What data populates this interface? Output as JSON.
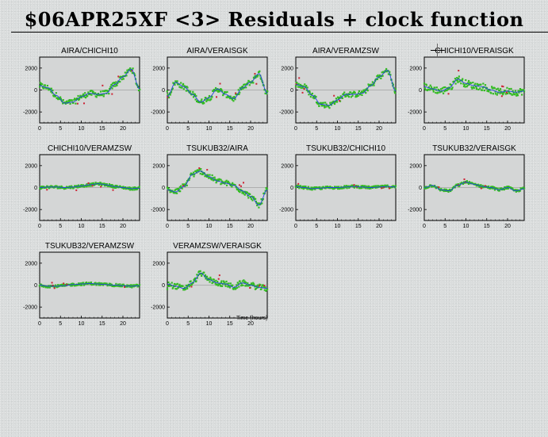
{
  "title": "$06APR25XF <3> Residuals + clock function",
  "colors": {
    "data": "#33bb22",
    "flagged": "#cc2233",
    "clock": "#2244dd",
    "plot_bg": "#d4d6d6"
  },
  "chart_data": [
    {
      "type": "scatter",
      "title": "AIRA/CHICHI10",
      "xlim": [
        0,
        24
      ],
      "ylim": [
        -3000,
        3000
      ],
      "xticks": [
        0,
        5,
        10,
        15,
        20
      ],
      "yticks": [
        -2000,
        0,
        2000
      ],
      "clock_x": [
        0,
        2,
        4,
        6,
        8,
        10,
        12,
        14,
        16,
        18,
        20,
        22,
        24
      ],
      "clock_y": [
        400,
        200,
        -500,
        -1200,
        -1100,
        -600,
        -300,
        -400,
        -300,
        500,
        1200,
        1900,
        100
      ]
    },
    {
      "type": "scatter",
      "title": "AIRA/VERAISGK",
      "xlim": [
        0,
        24
      ],
      "ylim": [
        -3000,
        3000
      ],
      "xticks": [
        0,
        5,
        10,
        15,
        20
      ],
      "yticks": [
        -2000,
        0,
        2000
      ],
      "clock_x": [
        0,
        2,
        4,
        6,
        8,
        10,
        12,
        14,
        16,
        18,
        20,
        22,
        24
      ],
      "clock_y": [
        -600,
        700,
        300,
        -400,
        -1100,
        -700,
        100,
        -400,
        -800,
        200,
        700,
        1500,
        -300
      ]
    },
    {
      "type": "scatter",
      "title": "AIRA/VERAMZSW",
      "xlim": [
        0,
        24
      ],
      "ylim": [
        -3000,
        3000
      ],
      "xticks": [
        0,
        5,
        10,
        15,
        20
      ],
      "yticks": [
        -2000,
        0,
        2000
      ],
      "clock_x": [
        0,
        2,
        4,
        6,
        8,
        10,
        12,
        14,
        16,
        18,
        20,
        22,
        24
      ],
      "clock_y": [
        500,
        300,
        -500,
        -1300,
        -1400,
        -900,
        -400,
        -400,
        -300,
        400,
        1200,
        1800,
        -100
      ]
    },
    {
      "type": "scatter",
      "title": "CHICHI10/VERAISGK",
      "xlim": [
        0,
        24
      ],
      "ylim": [
        -3000,
        3000
      ],
      "xticks": [
        0,
        5,
        10,
        15,
        20
      ],
      "yticks": [
        -2000,
        0,
        2000
      ],
      "clock_x": [
        0,
        2,
        4,
        6,
        8,
        10,
        12,
        14,
        16,
        18,
        20,
        22,
        24
      ],
      "clock_y": [
        300,
        100,
        -100,
        200,
        1000,
        600,
        400,
        300,
        0,
        -200,
        -100,
        -200,
        -100
      ]
    },
    {
      "type": "scatter",
      "title": "CHICHI10/VERAMZSW",
      "xlim": [
        0,
        24
      ],
      "ylim": [
        -3000,
        3000
      ],
      "xticks": [
        0,
        5,
        10,
        15,
        20
      ],
      "yticks": [
        -2000,
        0,
        2000
      ],
      "clock_x": [
        0,
        2,
        4,
        6,
        8,
        10,
        12,
        14,
        16,
        18,
        20,
        22,
        24
      ],
      "clock_y": [
        0,
        50,
        50,
        0,
        50,
        150,
        250,
        350,
        250,
        100,
        0,
        -100,
        -50
      ]
    },
    {
      "type": "scatter",
      "title": "TSUKUB32/AIRA",
      "xlim": [
        0,
        24
      ],
      "ylim": [
        -3000,
        3000
      ],
      "xticks": [
        0,
        5,
        10,
        15,
        20
      ],
      "yticks": [
        -2000,
        0,
        2000
      ],
      "clock_x": [
        0,
        2,
        4,
        6,
        8,
        10,
        12,
        14,
        16,
        18,
        20,
        22,
        24
      ],
      "clock_y": [
        -200,
        -400,
        100,
        1200,
        1500,
        1000,
        600,
        400,
        200,
        -300,
        -800,
        -1600,
        -200
      ]
    },
    {
      "type": "scatter",
      "title": "TSUKUB32/CHICHI10",
      "xlim": [
        0,
        24
      ],
      "ylim": [
        -3000,
        3000
      ],
      "xticks": [
        0,
        5,
        10,
        15,
        20
      ],
      "yticks": [
        -2000,
        0,
        2000
      ],
      "clock_x": [
        0,
        2,
        4,
        6,
        8,
        10,
        12,
        14,
        16,
        18,
        20,
        22,
        24
      ],
      "clock_y": [
        100,
        0,
        -100,
        -50,
        0,
        0,
        50,
        100,
        50,
        0,
        50,
        100,
        50
      ]
    },
    {
      "type": "scatter",
      "title": "TSUKUB32/VERAISGK",
      "xlim": [
        0,
        24
      ],
      "ylim": [
        -3000,
        3000
      ],
      "xticks": [
        0,
        5,
        10,
        15,
        20
      ],
      "yticks": [
        -2000,
        0,
        2000
      ],
      "clock_x": [
        0,
        2,
        4,
        6,
        8,
        10,
        12,
        14,
        16,
        18,
        20,
        22,
        24
      ],
      "clock_y": [
        0,
        200,
        -200,
        -300,
        200,
        500,
        300,
        100,
        0,
        -200,
        0,
        -300,
        -100
      ]
    },
    {
      "type": "scatter",
      "title": "TSUKUB32/VERAMZSW",
      "xlim": [
        0,
        24
      ],
      "ylim": [
        -3000,
        3000
      ],
      "xticks": [
        0,
        5,
        10,
        15,
        20
      ],
      "yticks": [
        -2000,
        0,
        2000
      ],
      "clock_x": [
        0,
        2,
        4,
        6,
        8,
        10,
        12,
        14,
        16,
        18,
        20,
        22,
        24
      ],
      "clock_y": [
        0,
        -100,
        -100,
        -50,
        50,
        100,
        150,
        100,
        50,
        0,
        -50,
        -100,
        -50
      ]
    },
    {
      "type": "scatter",
      "title": "VERAMZSW/VERAISGK",
      "xlim": [
        0,
        24
      ],
      "ylim": [
        -3000,
        3000
      ],
      "xticks": [
        0,
        5,
        10,
        15,
        20
      ],
      "yticks": [
        -2000,
        0,
        2000
      ],
      "xlabel": "Time (hours)",
      "clock_x": [
        0,
        2,
        4,
        6,
        8,
        10,
        12,
        14,
        16,
        18,
        20,
        22,
        24
      ],
      "clock_y": [
        100,
        -100,
        -300,
        200,
        1100,
        500,
        200,
        100,
        -200,
        200,
        0,
        -200,
        -300
      ]
    }
  ]
}
